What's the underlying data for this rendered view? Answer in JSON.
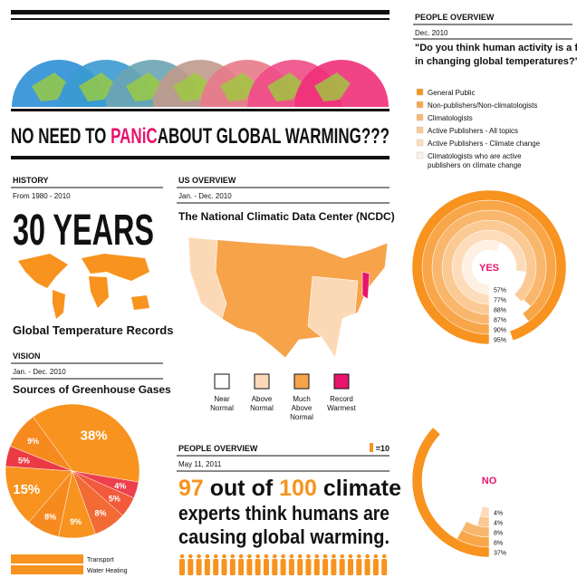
{
  "header": {
    "title_before": "NO NEED TO",
    "title_highlight": "PANiC",
    "title_after": "ABOUT GLOBAL WARMING???"
  },
  "history": {
    "heading": "HISTORY",
    "period": "From 1980 - 2010",
    "headline": "30 YEARS",
    "caption": "Global Temperature Records"
  },
  "vision": {
    "heading": "VISION",
    "period": "Jan. - Dec. 2010",
    "subtitle": "Sources of Greenhouse Gases",
    "legend": [
      {
        "label": "Transport",
        "color": "#f7931e"
      },
      {
        "label": "Water Heating",
        "color": "#f7931e"
      }
    ]
  },
  "us_overview": {
    "heading": "US OVERVIEW",
    "period": "Jan. - Dec. 2010",
    "subtitle": "The National Climatic Data Center (NCDC)",
    "legend": [
      {
        "lines": [
          "Near",
          "Normal"
        ],
        "color": "#ffffff"
      },
      {
        "lines": [
          "Above",
          "Normal"
        ],
        "color": "#fcd9b6"
      },
      {
        "lines": [
          "Much",
          "Above",
          "Normal"
        ],
        "color": "#f7a34a"
      },
      {
        "lines": [
          "Record",
          "Warmest"
        ],
        "color": "#e8146c"
      }
    ]
  },
  "people_overview": {
    "heading": "PEOPLE OVERVIEW",
    "icon_note": "=10",
    "date": "May 11, 2011",
    "number_a": "97",
    "text_a": "out of",
    "number_b": "100",
    "text_b": "climate",
    "line_2": "experts think humans are",
    "line_3": "causing global warming."
  },
  "survey": {
    "heading": "PEOPLE OVERVIEW",
    "date": "Dec. 2010",
    "question": [
      "\"Do you think human activity is a factor",
      "in changing global temperatures?\""
    ],
    "legend": [
      {
        "label": "General Public",
        "color": "#f7931e"
      },
      {
        "label": "Non-publishers/Non-climatologists",
        "color": "#f8a649"
      },
      {
        "label": "Climatologists",
        "color": "#f9b76d"
      },
      {
        "label": "Active Publishers - All topics",
        "color": "#fbc993"
      },
      {
        "label": "Active Publishers - Climate change",
        "color": "#fcdcba"
      },
      {
        "label": [
          "Climatologists who are active",
          "publishers on climate change"
        ],
        "color": "#fef0e2"
      }
    ]
  },
  "chart_data": [
    {
      "type": "pie",
      "values": [
        38,
        4,
        5,
        8,
        9,
        8,
        15,
        5,
        9
      ],
      "value_labels": [
        "38%",
        "4%",
        "5%",
        "8%",
        "9%",
        "8%",
        "15%",
        "5%",
        "9%"
      ],
      "colors": [
        "#f7931e",
        "#ee3f4d",
        "#f15a3a",
        "#f26b35",
        "#f7931e",
        "#f68a1f",
        "#f7931e",
        "#ec3a44",
        "#f68a1f"
      ]
    },
    {
      "type": "radial",
      "title": "YES",
      "values": [
        57,
        77,
        88,
        87,
        90,
        95
      ],
      "value_labels": [
        "57%",
        "77%",
        "88%",
        "87%",
        "90%",
        "95%"
      ],
      "colors": [
        "#fef0e2",
        "#fcdcba",
        "#fbc993",
        "#f9b76d",
        "#f8a649",
        "#f7931e"
      ]
    },
    {
      "type": "radial",
      "title": "NO",
      "values": [
        4,
        4,
        8,
        8,
        37
      ],
      "value_labels": [
        "4%",
        "4%",
        "8%",
        "8%",
        "37%"
      ],
      "colors": [
        "#fcdcba",
        "#fbc993",
        "#f9b76d",
        "#f8a649",
        "#f7931e"
      ]
    }
  ]
}
